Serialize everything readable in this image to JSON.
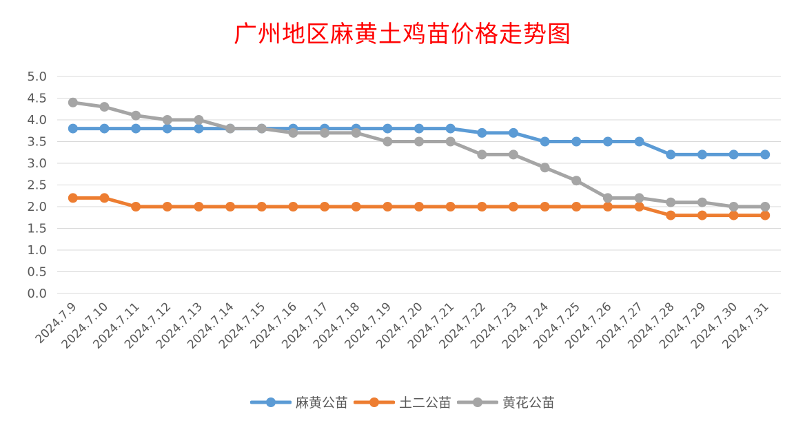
{
  "chart_data": {
    "type": "line",
    "title": "广州地区麻黄土鸡苗价格走势图",
    "xlabel": "",
    "ylabel": "",
    "ylim": [
      0,
      5.0
    ],
    "yticks": [
      "0.0",
      "0.5",
      "1.0",
      "1.5",
      "2.0",
      "2.5",
      "3.0",
      "3.5",
      "4.0",
      "4.5",
      "5.0"
    ],
    "grid": true,
    "legend_position": "bottom",
    "categories": [
      "2024.7.9",
      "2024.7.10",
      "2024.7.11",
      "2024.7.12",
      "2024.7.13",
      "2024.7.14",
      "2024.7.15",
      "2024.7.16",
      "2024.7.17",
      "2024.7.18",
      "2024.7.19",
      "2024.7.20",
      "2024.7.21",
      "2024.7.22",
      "2024.7.23",
      "2024.7.24",
      "2024.7.25",
      "2024.7.26",
      "2024.7.27",
      "2024.7.28",
      "2024.7.29",
      "2024.7.30",
      "2024.7.31"
    ],
    "series": [
      {
        "name": "麻黄公苗",
        "color": "#5b9bd5",
        "values": [
          3.8,
          3.8,
          3.8,
          3.8,
          3.8,
          3.8,
          3.8,
          3.8,
          3.8,
          3.8,
          3.8,
          3.8,
          3.8,
          3.7,
          3.7,
          3.5,
          3.5,
          3.5,
          3.5,
          3.2,
          3.2,
          3.2,
          3.2
        ]
      },
      {
        "name": "土二公苗",
        "color": "#ed7d31",
        "values": [
          2.2,
          2.2,
          2.0,
          2.0,
          2.0,
          2.0,
          2.0,
          2.0,
          2.0,
          2.0,
          2.0,
          2.0,
          2.0,
          2.0,
          2.0,
          2.0,
          2.0,
          2.0,
          2.0,
          1.8,
          1.8,
          1.8,
          1.8
        ]
      },
      {
        "name": "黄花公苗",
        "color": "#a5a5a5",
        "values": [
          4.4,
          4.3,
          4.1,
          4.0,
          4.0,
          3.8,
          3.8,
          3.7,
          3.7,
          3.7,
          3.5,
          3.5,
          3.5,
          3.2,
          3.2,
          2.9,
          2.6,
          2.2,
          2.2,
          2.1,
          2.1,
          2.0,
          2.0
        ]
      }
    ]
  }
}
